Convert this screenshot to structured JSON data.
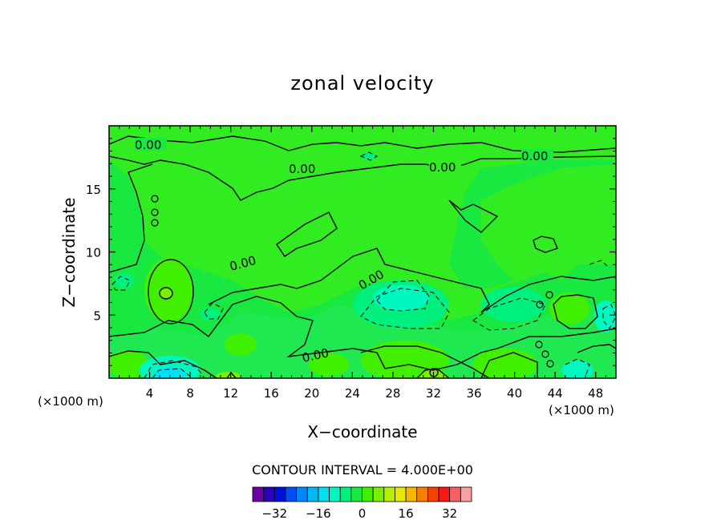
{
  "chart_data": {
    "type": "heatmap",
    "title": "zonal velocity",
    "xlabel": "X−coordinate",
    "ylabel": "Z−coordinate",
    "x_unit": "(×1000 m)",
    "xlim": [
      0,
      50
    ],
    "ylim": [
      0,
      20
    ],
    "x_ticks": [
      4,
      8,
      12,
      16,
      20,
      24,
      28,
      32,
      36,
      40,
      44,
      48
    ],
    "y_ticks": [
      5,
      10,
      15
    ],
    "contour_interval_text": "CONTOUR INTERVAL = 4.000E+00",
    "contour_interval": 4,
    "contour_labels": [
      "0.00",
      "0.00",
      "0.00",
      "0.00",
      "0.00",
      "0.00",
      "0.00"
    ],
    "colorbar": {
      "ticks": [
        -32,
        -16,
        0,
        16,
        32
      ],
      "tick_labels": [
        "−32",
        "−16",
        "0",
        "16",
        "32"
      ],
      "levels": [
        -36,
        -32,
        -28,
        -24,
        -20,
        -16,
        -12,
        -8,
        -4,
        0,
        4,
        8,
        12,
        16,
        20,
        24,
        28,
        32,
        36
      ],
      "colors": [
        "#6a00a8",
        "#2a00b8",
        "#0010d8",
        "#0050f0",
        "#0088f8",
        "#00b8f8",
        "#00e0f0",
        "#00f8c0",
        "#00f080",
        "#18e840",
        "#40f000",
        "#78f000",
        "#b8f000",
        "#e8e800",
        "#f8b800",
        "#f88000",
        "#f84000",
        "#f81818",
        "#f86060",
        "#f8a0a0"
      ]
    },
    "features": [
      {
        "kind": "max",
        "x": 5.5,
        "z": 6.7,
        "value": 8
      },
      {
        "kind": "min",
        "x": 29,
        "z": 6.0,
        "value": -8
      },
      {
        "kind": "min",
        "x": 7,
        "z": 0.4,
        "value": -12
      },
      {
        "kind": "max",
        "x": 32,
        "z": 0.4,
        "value": 4
      }
    ]
  }
}
